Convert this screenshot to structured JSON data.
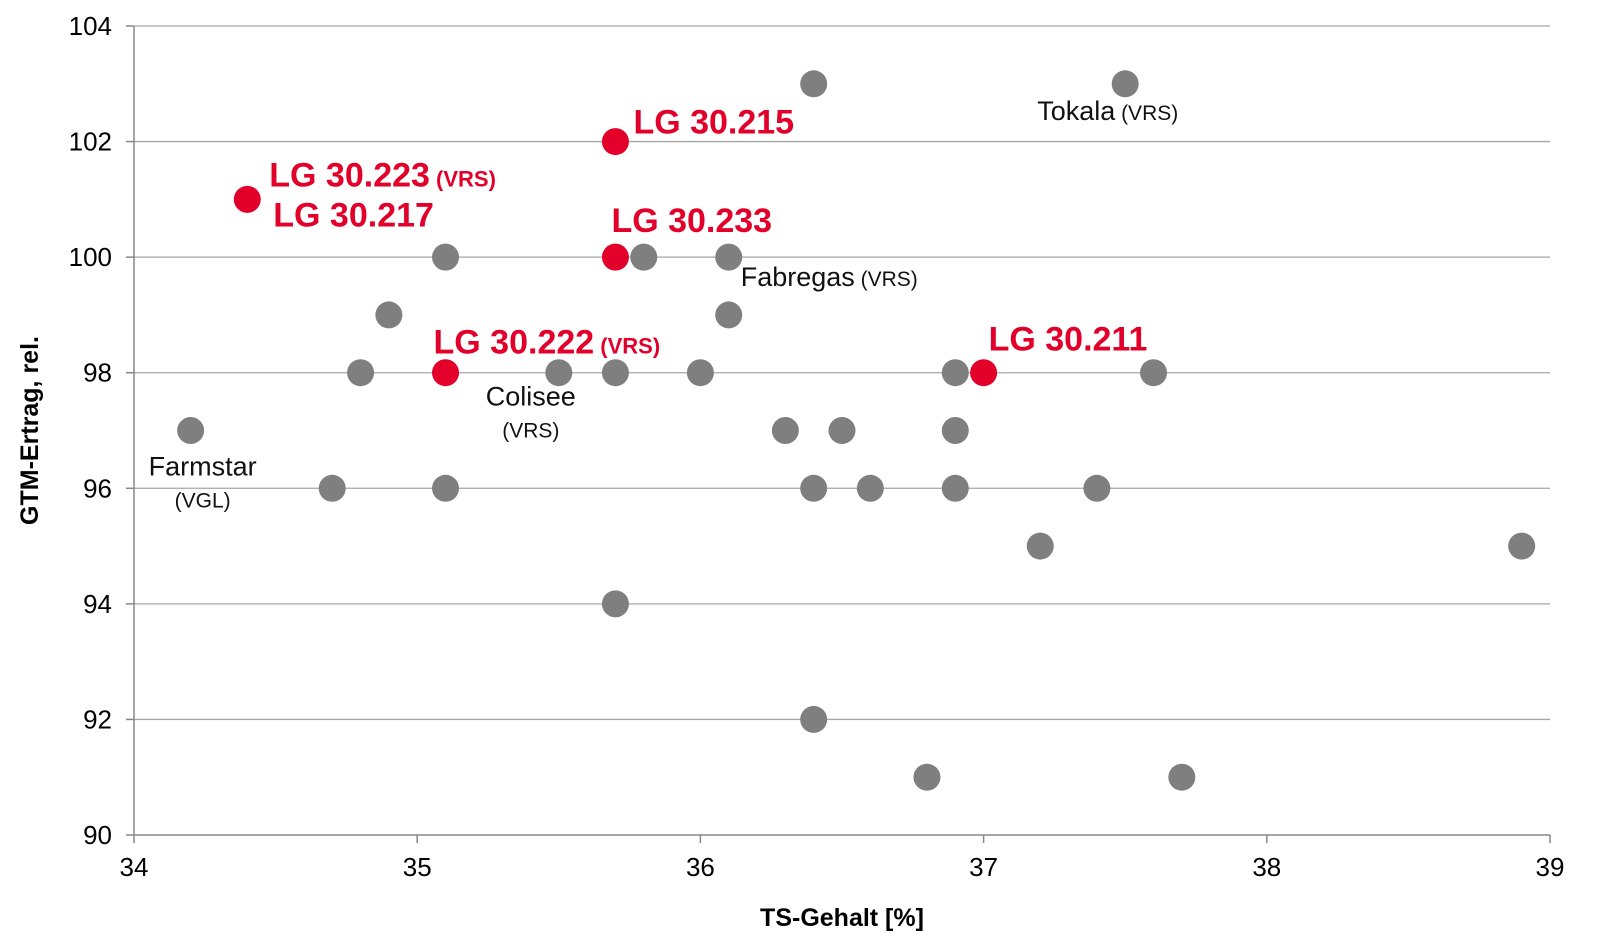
{
  "chart_data": {
    "type": "scatter",
    "title": "",
    "xlabel": "TS-Gehalt [%]",
    "ylabel": "GTM-Ertrag, rel.",
    "xlim": [
      34,
      39
    ],
    "ylim": [
      90,
      104
    ],
    "xticks": [
      34,
      35,
      36,
      37,
      38,
      39
    ],
    "yticks": [
      90,
      92,
      94,
      96,
      98,
      100,
      102,
      104
    ],
    "grid": "horizontal",
    "colors": {
      "highlight": "#e2002a",
      "other": "#7f7f7f",
      "grid": "#a6a6a6",
      "axis": "#888888"
    },
    "series": [
      {
        "name": "",
        "color": "#7f7f7f",
        "points": [
          {
            "x": 36.4,
            "y": 103
          },
          {
            "x": 37.5,
            "y": 103
          },
          {
            "x": 35.1,
            "y": 100
          },
          {
            "x": 35.8,
            "y": 100
          },
          {
            "x": 36.1,
            "y": 100
          },
          {
            "x": 34.9,
            "y": 99
          },
          {
            "x": 36.1,
            "y": 99
          },
          {
            "x": 34.8,
            "y": 98
          },
          {
            "x": 35.5,
            "y": 98
          },
          {
            "x": 35.7,
            "y": 98
          },
          {
            "x": 36.0,
            "y": 98
          },
          {
            "x": 36.9,
            "y": 98
          },
          {
            "x": 37.6,
            "y": 98
          },
          {
            "x": 34.2,
            "y": 97
          },
          {
            "x": 36.3,
            "y": 97
          },
          {
            "x": 36.5,
            "y": 97
          },
          {
            "x": 36.9,
            "y": 97
          },
          {
            "x": 34.7,
            "y": 96
          },
          {
            "x": 35.1,
            "y": 96
          },
          {
            "x": 36.4,
            "y": 96
          },
          {
            "x": 36.6,
            "y": 96
          },
          {
            "x": 36.9,
            "y": 96
          },
          {
            "x": 37.4,
            "y": 96
          },
          {
            "x": 37.2,
            "y": 95
          },
          {
            "x": 38.9,
            "y": 95
          },
          {
            "x": 35.7,
            "y": 94
          },
          {
            "x": 36.4,
            "y": 92
          },
          {
            "x": 36.8,
            "y": 91
          },
          {
            "x": 37.7,
            "y": 91
          }
        ]
      },
      {
        "name": "",
        "color": "#e2002a",
        "points": [
          {
            "x": 35.7,
            "y": 102
          },
          {
            "x": 34.4,
            "y": 101
          },
          {
            "x": 35.7,
            "y": 100
          },
          {
            "x": 35.1,
            "y": 98
          },
          {
            "x": 37.0,
            "y": 98
          }
        ]
      }
    ],
    "annotations": [
      {
        "text": "Tokala",
        "suffix": "(VRS)",
        "color": "black",
        "x": 37.5,
        "y": 103
      },
      {
        "text": "Fabregas",
        "suffix": "(VRS)",
        "color": "black",
        "x": 36.1,
        "y": 100
      },
      {
        "text": "Colisee",
        "suffix": "(VRS)",
        "color": "black",
        "x": 35.5,
        "y": 98
      },
      {
        "text": "Farmstar",
        "suffix": "(VGL)",
        "color": "black",
        "x": 34.2,
        "y": 97
      },
      {
        "text": "LG 30.215",
        "suffix": "",
        "color": "red",
        "x": 35.7,
        "y": 102
      },
      {
        "text": "LG 30.223",
        "suffix": "(VRS)",
        "color": "red",
        "x": 34.4,
        "y": 101
      },
      {
        "text": "LG 30.217",
        "suffix": "",
        "color": "red",
        "x": 34.4,
        "y": 101
      },
      {
        "text": "LG 30.233",
        "suffix": "",
        "color": "red",
        "x": 35.7,
        "y": 100
      },
      {
        "text": "LG 30.222",
        "suffix": "(VRS)",
        "color": "red",
        "x": 35.1,
        "y": 98
      },
      {
        "text": "LG 30.211",
        "suffix": "",
        "color": "red",
        "x": 37.0,
        "y": 98
      }
    ]
  }
}
